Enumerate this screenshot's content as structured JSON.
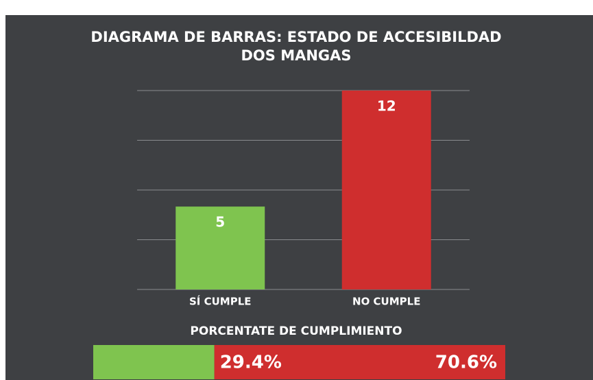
{
  "chart_data": [
    {
      "type": "bar",
      "title": [
        "DIAGRAMA DE BARRAS: ESTADO DE ACCESIBILDAD",
        "DOS MANGAS"
      ],
      "categories": [
        "SÍ CUMPLE",
        "NO CUMPLE"
      ],
      "values": [
        5,
        12
      ],
      "colors": [
        "#7fc44f",
        "#cf2e2e"
      ],
      "ylim": [
        0,
        12
      ],
      "yticks": [
        0,
        3,
        6,
        9,
        12
      ],
      "grid": true
    },
    {
      "type": "percent_bar",
      "title": "PORCENTATE DE CUMPLIMIENTO",
      "values": [
        29.4,
        70.6
      ],
      "value_labels": [
        "29.4%",
        "70.6%"
      ],
      "colors": [
        "#7fc44f",
        "#cf2e2e"
      ],
      "xlim": [
        0,
        100
      ]
    }
  ]
}
